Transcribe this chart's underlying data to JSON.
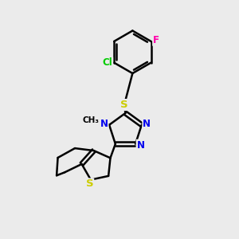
{
  "bg_color": "#ebebeb",
  "bond_color": "#000000",
  "bond_lw": 1.8,
  "atom_colors": {
    "S": "#cccc00",
    "N": "#0000ee",
    "Cl": "#00cc00",
    "F": "#ff00aa",
    "C": "#000000"
  }
}
